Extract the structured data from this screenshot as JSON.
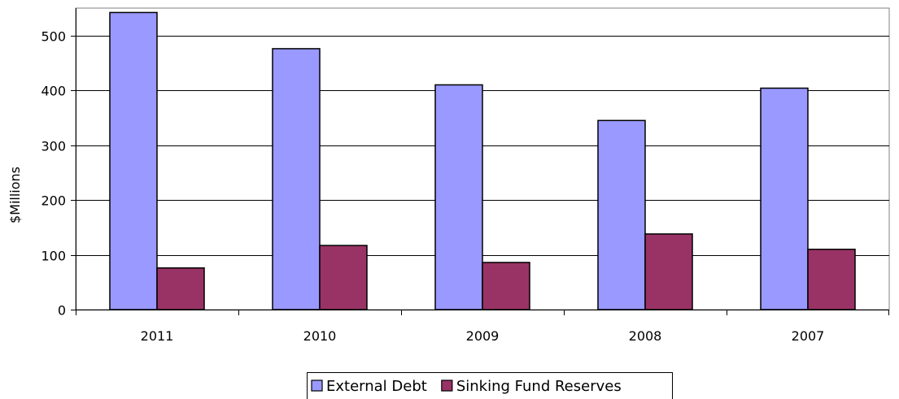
{
  "chart_data": {
    "type": "bar",
    "categories": [
      "2011",
      "2010",
      "2009",
      "2008",
      "2007"
    ],
    "series": [
      {
        "name": "External Debt",
        "values": [
          542,
          476,
          410,
          345,
          404
        ],
        "color": "#9999ff"
      },
      {
        "name": "Sinking Fund Reserves",
        "values": [
          76,
          117,
          86,
          138,
          110
        ],
        "color": "#993366"
      }
    ],
    "ylabel": "$Millions",
    "ylim": [
      0,
      550
    ],
    "yticks": [
      0,
      100,
      200,
      300,
      400,
      500
    ],
    "grid": true,
    "legend_position": "bottom"
  }
}
